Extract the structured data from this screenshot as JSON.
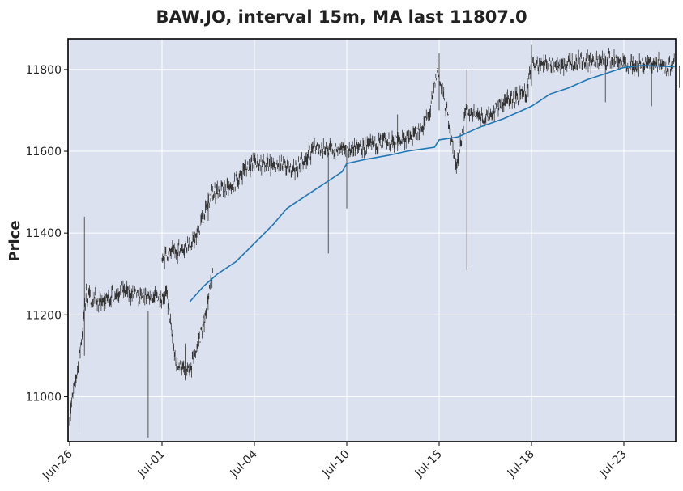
{
  "chart_data": {
    "type": "candlestick",
    "title": "BAW.JO, interval 15m, MA last 11807.0",
    "ylabel": "Price",
    "xlabel": "",
    "grid": true,
    "ylim": [
      10890,
      11875
    ],
    "yticks": [
      11000,
      11200,
      11400,
      11600,
      11800
    ],
    "xticks": [
      "Jun-26",
      "Jul-01",
      "Jul-04",
      "Jul-10",
      "Jul-15",
      "Jul-18",
      "Jul-23"
    ],
    "colors": {
      "background": "#dce1ef",
      "grid": "#ffffff",
      "candle": "#333333",
      "ma": "#1f77b4"
    },
    "price_path": [
      [
        "Jun-26",
        0.0,
        10960
      ],
      [
        "Jun-26",
        0.1,
        11080
      ],
      [
        "Jun-26",
        0.18,
        11250
      ],
      [
        "Jun-26",
        0.35,
        11230
      ],
      [
        "Jun-26",
        0.55,
        11260
      ],
      [
        "Jun-26",
        0.8,
        11240
      ],
      [
        "Jun-26",
        1.05,
        11250
      ],
      [
        "Jun-26",
        1.15,
        11080
      ],
      [
        "Jun-26",
        1.3,
        11060
      ],
      [
        "Jun-26",
        1.45,
        11180
      ],
      [
        "Jun-26",
        1.55,
        11300
      ],
      [
        "Jul-01",
        0.0,
        11340
      ],
      [
        "Jul-01",
        0.2,
        11360
      ],
      [
        "Jul-01",
        0.35,
        11380
      ],
      [
        "Jul-01",
        0.55,
        11500
      ],
      [
        "Jul-01",
        0.75,
        11510
      ],
      [
        "Jul-01",
        0.9,
        11560
      ],
      [
        "Jul-04",
        0.0,
        11570
      ],
      [
        "Jul-04",
        0.25,
        11565
      ],
      [
        "Jul-04",
        0.45,
        11555
      ],
      [
        "Jul-04",
        0.65,
        11610
      ],
      [
        "Jul-04",
        0.95,
        11600
      ],
      [
        "Jul-10",
        0.0,
        11605
      ],
      [
        "Jul-10",
        0.2,
        11610
      ],
      [
        "Jul-10",
        0.4,
        11620
      ],
      [
        "Jul-10",
        0.6,
        11630
      ],
      [
        "Jul-10",
        0.75,
        11640
      ],
      [
        "Jul-10",
        0.9,
        11690
      ],
      [
        "Jul-10",
        0.98,
        11800
      ],
      [
        "Jul-15",
        0.1,
        11680
      ],
      [
        "Jul-15",
        0.18,
        11560
      ],
      [
        "Jul-15",
        0.3,
        11700
      ],
      [
        "Jul-15",
        0.5,
        11680
      ],
      [
        "Jul-15",
        0.7,
        11720
      ],
      [
        "Jul-15",
        0.95,
        11740
      ],
      [
        "Jul-18",
        0.0,
        11820
      ],
      [
        "Jul-18",
        0.3,
        11810
      ],
      [
        "Jul-18",
        0.6,
        11820
      ],
      [
        "Jul-18",
        0.9,
        11825
      ],
      [
        "Jul-18",
        1.0,
        11815
      ],
      [
        "Jul-23",
        0.0,
        11810
      ],
      [
        "Jul-23",
        0.3,
        11815
      ],
      [
        "Jul-23",
        0.55,
        11808
      ]
    ],
    "moving_average": [
      [
        "Jul-01",
        0.3,
        11232
      ],
      [
        "Jul-01",
        0.45,
        11270
      ],
      [
        "Jul-01",
        0.6,
        11300
      ],
      [
        "Jul-01",
        0.8,
        11330
      ],
      [
        "Jul-01",
        1.0,
        11375
      ],
      [
        "Jul-04",
        0.2,
        11420
      ],
      [
        "Jul-04",
        0.35,
        11460
      ],
      [
        "Jul-04",
        0.55,
        11490
      ],
      [
        "Jul-04",
        0.75,
        11520
      ],
      [
        "Jul-04",
        0.95,
        11550
      ],
      [
        "Jul-10",
        0.0,
        11570
      ],
      [
        "Jul-10",
        0.2,
        11580
      ],
      [
        "Jul-10",
        0.45,
        11590
      ],
      [
        "Jul-10",
        0.65,
        11600
      ],
      [
        "Jul-10",
        0.95,
        11610
      ],
      [
        "Jul-15",
        0.0,
        11628
      ],
      [
        "Jul-15",
        0.2,
        11635
      ],
      [
        "Jul-15",
        0.45,
        11660
      ],
      [
        "Jul-15",
        0.7,
        11680
      ],
      [
        "Jul-15",
        1.0,
        11710
      ],
      [
        "Jul-18",
        0.2,
        11740
      ],
      [
        "Jul-18",
        0.4,
        11755
      ],
      [
        "Jul-18",
        0.6,
        11775
      ],
      [
        "Jul-18",
        0.8,
        11790
      ],
      [
        "Jul-18",
        1.0,
        11805
      ],
      [
        "Jul-23",
        0.2,
        11810
      ],
      [
        "Jul-23",
        0.55,
        11807
      ]
    ],
    "wicks": [
      [
        "Jun-26",
        0.01,
        10940,
        10990
      ],
      [
        "Jun-26",
        0.1,
        10910,
        11100
      ],
      [
        "Jun-26",
        0.16,
        11100,
        11440
      ],
      [
        "Jun-26",
        0.85,
        10900,
        11210
      ],
      [
        "Jun-26",
        1.25,
        11040,
        11130
      ],
      [
        "Jul-01",
        0.5,
        11430,
        11500
      ],
      [
        "Jul-04",
        0.8,
        11350,
        11610
      ],
      [
        "Jul-10",
        0.0,
        11460,
        11590
      ],
      [
        "Jul-10",
        0.55,
        11600,
        11690
      ],
      [
        "Jul-15",
        0.0,
        11700,
        11840
      ],
      [
        "Jul-15",
        0.3,
        11310,
        11800
      ],
      [
        "Jul-18",
        0.0,
        11760,
        11860
      ],
      [
        "Jul-18",
        0.8,
        11720,
        11830
      ],
      [
        "Jul-23",
        0.3,
        11710,
        11810
      ],
      [
        "Jul-23",
        0.6,
        11755,
        11810
      ]
    ]
  }
}
